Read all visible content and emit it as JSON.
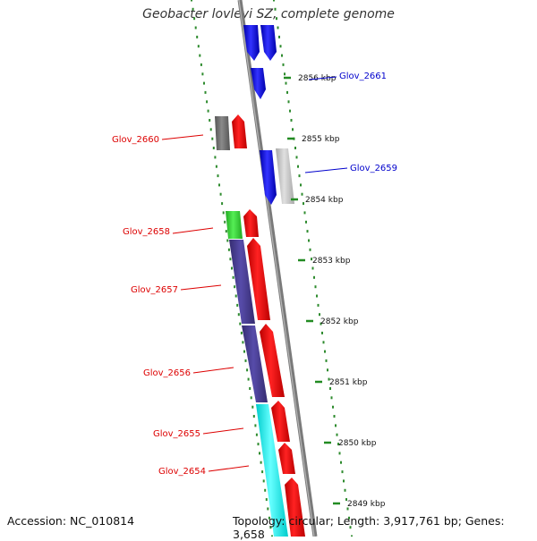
{
  "map": {
    "title": "Geobacter lovleyi SZ, complete genome",
    "accession": "Accession: NC_010814",
    "summary": "Topology: circular; Length: 3,917,761 bp; Genes: 3,658"
  },
  "ticks": [
    "2856 kbp",
    "2855 kbp",
    "2854 kbp",
    "2853 kbp",
    "2852 kbp",
    "2851 kbp",
    "2850 kbp",
    "2849 kbp"
  ],
  "genes": [
    {
      "label": "Glov_2661",
      "color": "#0000cc"
    },
    {
      "label": "Glov_2660",
      "color": "#dd0000"
    },
    {
      "label": "Glov_2659",
      "color": "#0000cc"
    },
    {
      "label": "Glov_2658",
      "color": "#dd0000"
    },
    {
      "label": "Glov_2657",
      "color": "#dd0000"
    },
    {
      "label": "Glov_2656",
      "color": "#dd0000"
    },
    {
      "label": "Glov_2655",
      "color": "#dd0000"
    },
    {
      "label": "Glov_2654",
      "color": "#dd0000"
    }
  ],
  "colors": {
    "backbone": "#8c8c8c",
    "forward_cds": "#ee0000",
    "reverse_cds": "#0000ee",
    "green_marker": "#228b22",
    "cyan_feature": "#00ffff",
    "indigo_feature": "#483d8b",
    "gray_feature": "#777777",
    "lightgray_feature": "#c0c0c0",
    "lime_feature": "#33cc33"
  }
}
